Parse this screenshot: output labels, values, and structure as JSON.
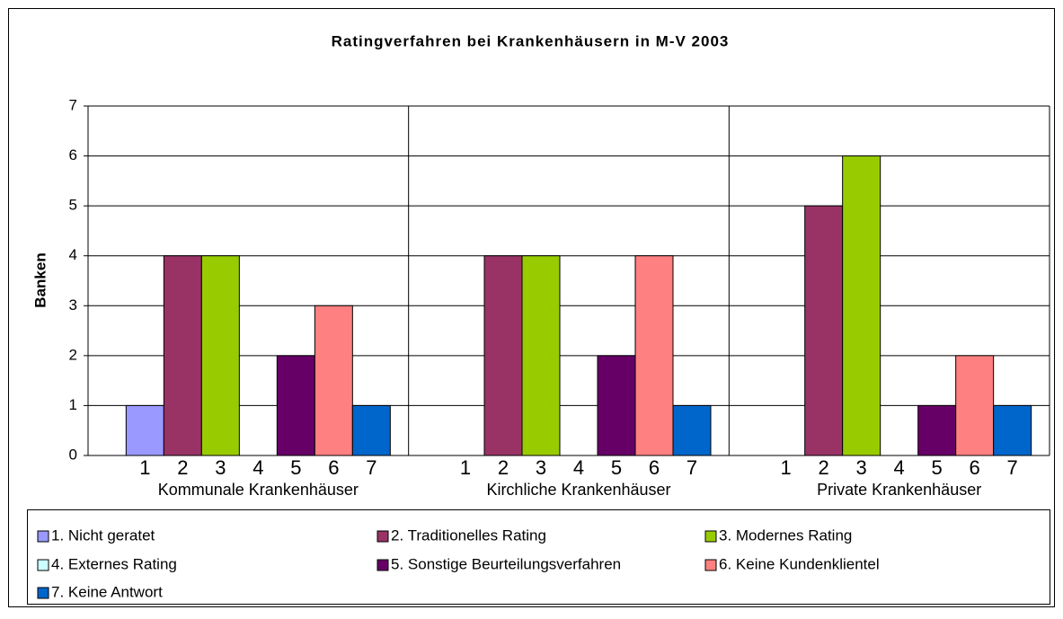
{
  "chart_data": {
    "type": "bar",
    "title": "Ratingverfahren bei Krankenhäusern in M-V 2003",
    "y_label": "Banken",
    "categories": [
      "Kommunale Krankenhäuser",
      "Kirchliche Krankenhäuser",
      "Private Krankenhäuser"
    ],
    "bar_labels": [
      1,
      2,
      3,
      4,
      5,
      6,
      7
    ],
    "series": [
      {
        "name": "1. Nicht geratet",
        "color": "#9999ff",
        "values": [
          1,
          0,
          0
        ]
      },
      {
        "name": "2. Traditionelles Rating",
        "color": "#993366",
        "values": [
          4,
          4,
          5
        ]
      },
      {
        "name": "3. Modernes Rating",
        "color": "#99cc00",
        "values": [
          4,
          4,
          6
        ]
      },
      {
        "name": "4. Externes Rating",
        "color": "#ccffff",
        "values": [
          0,
          0,
          0
        ]
      },
      {
        "name": "5. Sonstige Beurteilungsverfahren",
        "color": "#660066",
        "values": [
          2,
          2,
          1
        ]
      },
      {
        "name": "6. Keine Kundenklientel",
        "color": "#ff8080",
        "values": [
          3,
          4,
          2
        ]
      },
      {
        "name": "7. Keine Antwort",
        "color": "#0066cc",
        "values": [
          1,
          1,
          1
        ]
      }
    ],
    "ylim": [
      0,
      7
    ],
    "yticks": [
      0,
      1,
      2,
      3,
      4,
      5,
      6,
      7
    ],
    "grid": true,
    "legend": "bottom"
  }
}
